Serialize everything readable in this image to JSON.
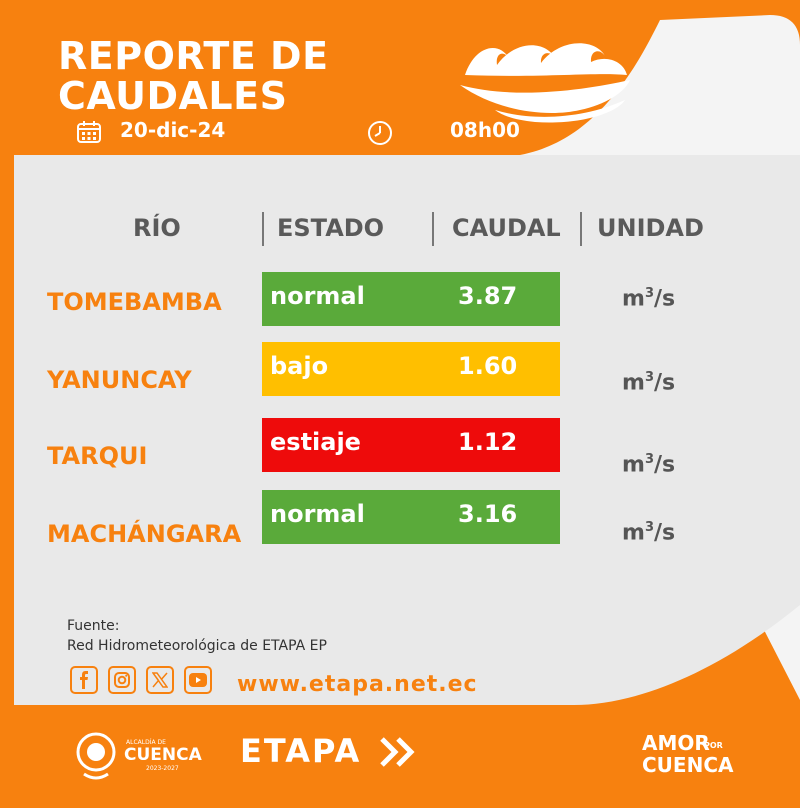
{
  "header": {
    "title_line1": "REPORTE DE",
    "title_line2": "CAUDALES",
    "date": "20-dic-24",
    "time": "08h00",
    "calendar_icon": "calendar-icon",
    "clock_icon": "clock-icon",
    "logo_icon": "waves-logo"
  },
  "table": {
    "headers": [
      "RÍO",
      "ESTADO",
      "CAUDAL",
      "UNIDAD"
    ],
    "rows": [
      {
        "river": "TOMEBAMBA",
        "status": "normal",
        "flow": "3.87",
        "unit": "m",
        "unit_exp": "3",
        "unit_tail": "/s",
        "color": "#5aaa3a"
      },
      {
        "river": "YANUNCAY",
        "status": "bajo",
        "flow": "1.60",
        "unit": "m",
        "unit_exp": "3",
        "unit_tail": "/s",
        "color": "#ffbf00"
      },
      {
        "river": "TARQUI",
        "status": "estiaje",
        "flow": "1.12",
        "unit": "m",
        "unit_exp": "3",
        "unit_tail": "/s",
        "color": "#ee0b0b"
      },
      {
        "river": "MACHÁNGARA",
        "status": "normal",
        "flow": "3.16",
        "unit": "m",
        "unit_exp": "3",
        "unit_tail": "/s",
        "color": "#5aaa3a"
      }
    ]
  },
  "footer": {
    "source_label": "Fuente:",
    "source_text": "Red Hidrometeorológica de ETAPA EP",
    "social_icons": [
      "facebook-icon",
      "instagram-icon",
      "x-icon",
      "youtube-icon"
    ],
    "website": "www.etapa.net.ec"
  },
  "bottom_bar": {
    "cuenca_small": "ALCALDÍA DE",
    "cuenca_name": "CUENCA",
    "cuenca_years": "2023-2027",
    "etapa": "ETAPA",
    "amor_line1": "AMOR",
    "amor_por": "POR",
    "amor_line2": "CUENCA"
  },
  "colors": {
    "brand_orange": "#f7810f",
    "card_gray": "#e8e8e8",
    "normal": "#5aaa3a",
    "bajo": "#ffbf00",
    "estiaje": "#ee0b0b"
  }
}
